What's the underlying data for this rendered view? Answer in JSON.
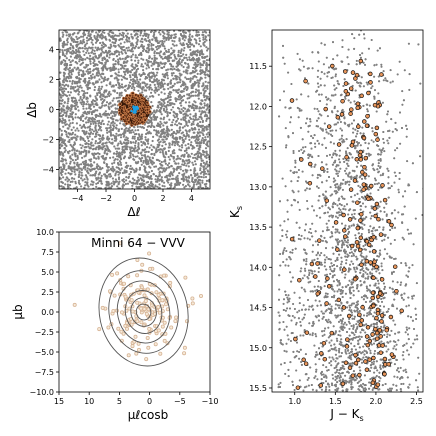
{
  "chart_data": [
    {
      "type": "scatter",
      "xlabel": "Δℓ",
      "ylabel": "Δb",
      "xlim": [
        -5.3,
        5.3
      ],
      "ylim": [
        -5.3,
        5.3
      ],
      "xticks": [
        -4,
        -2,
        0,
        2,
        4
      ],
      "yticks": [
        -4,
        -2,
        0,
        2,
        4
      ],
      "series": [
        {
          "role": "field-stars",
          "color": "#808080",
          "count_points": 4000,
          "extent": [
            -5.3,
            5.3
          ]
        },
        {
          "role": "cluster-members",
          "color": "#5c2a12",
          "edge": "#e8955a",
          "radius": 1.1,
          "count_points": 140
        },
        {
          "role": "cluster-core",
          "color": "#1ca0e6",
          "radius": 0.25
        }
      ]
    },
    {
      "type": "scatter",
      "xlabel": "μℓcosb",
      "ylabel": "μb",
      "title": "Minni 64 − VVV",
      "xlim": [
        15,
        -10
      ],
      "ylim": [
        -10,
        10
      ],
      "xticks": [
        15,
        10,
        5,
        0,
        -5,
        -10
      ],
      "yticks": [
        -10.0,
        -7.5,
        -5.0,
        -2.5,
        0.0,
        2.5,
        5.0,
        7.5,
        10.0
      ],
      "series": [
        {
          "role": "proper-motion-stars",
          "color": "#d7b597",
          "count_points": 180,
          "center": [
            1.0,
            0.0
          ]
        },
        {
          "role": "density-contours",
          "color": "#555555",
          "center": [
            1.0,
            0.0
          ],
          "radii_x": [
            1.2,
            2.1,
            3.0,
            4.3,
            5.7,
            7.3
          ],
          "radii_y": [
            1.0,
            1.8,
            2.7,
            3.9,
            5.2,
            6.8
          ]
        }
      ]
    },
    {
      "type": "scatter",
      "xlabel": "J − K",
      "xlabel_sub": "s",
      "ylabel": "K",
      "ylabel_sub": "s",
      "xlim": [
        0.72,
        2.58
      ],
      "ylim": [
        15.55,
        11.05
      ],
      "xticks": [
        1.0,
        1.5,
        2.0,
        2.5
      ],
      "yticks": [
        11.5,
        12.0,
        12.5,
        13.0,
        13.5,
        14.0,
        14.5,
        15.0,
        15.5
      ],
      "series": [
        {
          "role": "field-CMD",
          "color": "#808080",
          "count_points": 5200
        },
        {
          "role": "cluster-CMD",
          "color": "#e8955a",
          "edge": "#111111",
          "count_points": 200
        }
      ]
    }
  ]
}
